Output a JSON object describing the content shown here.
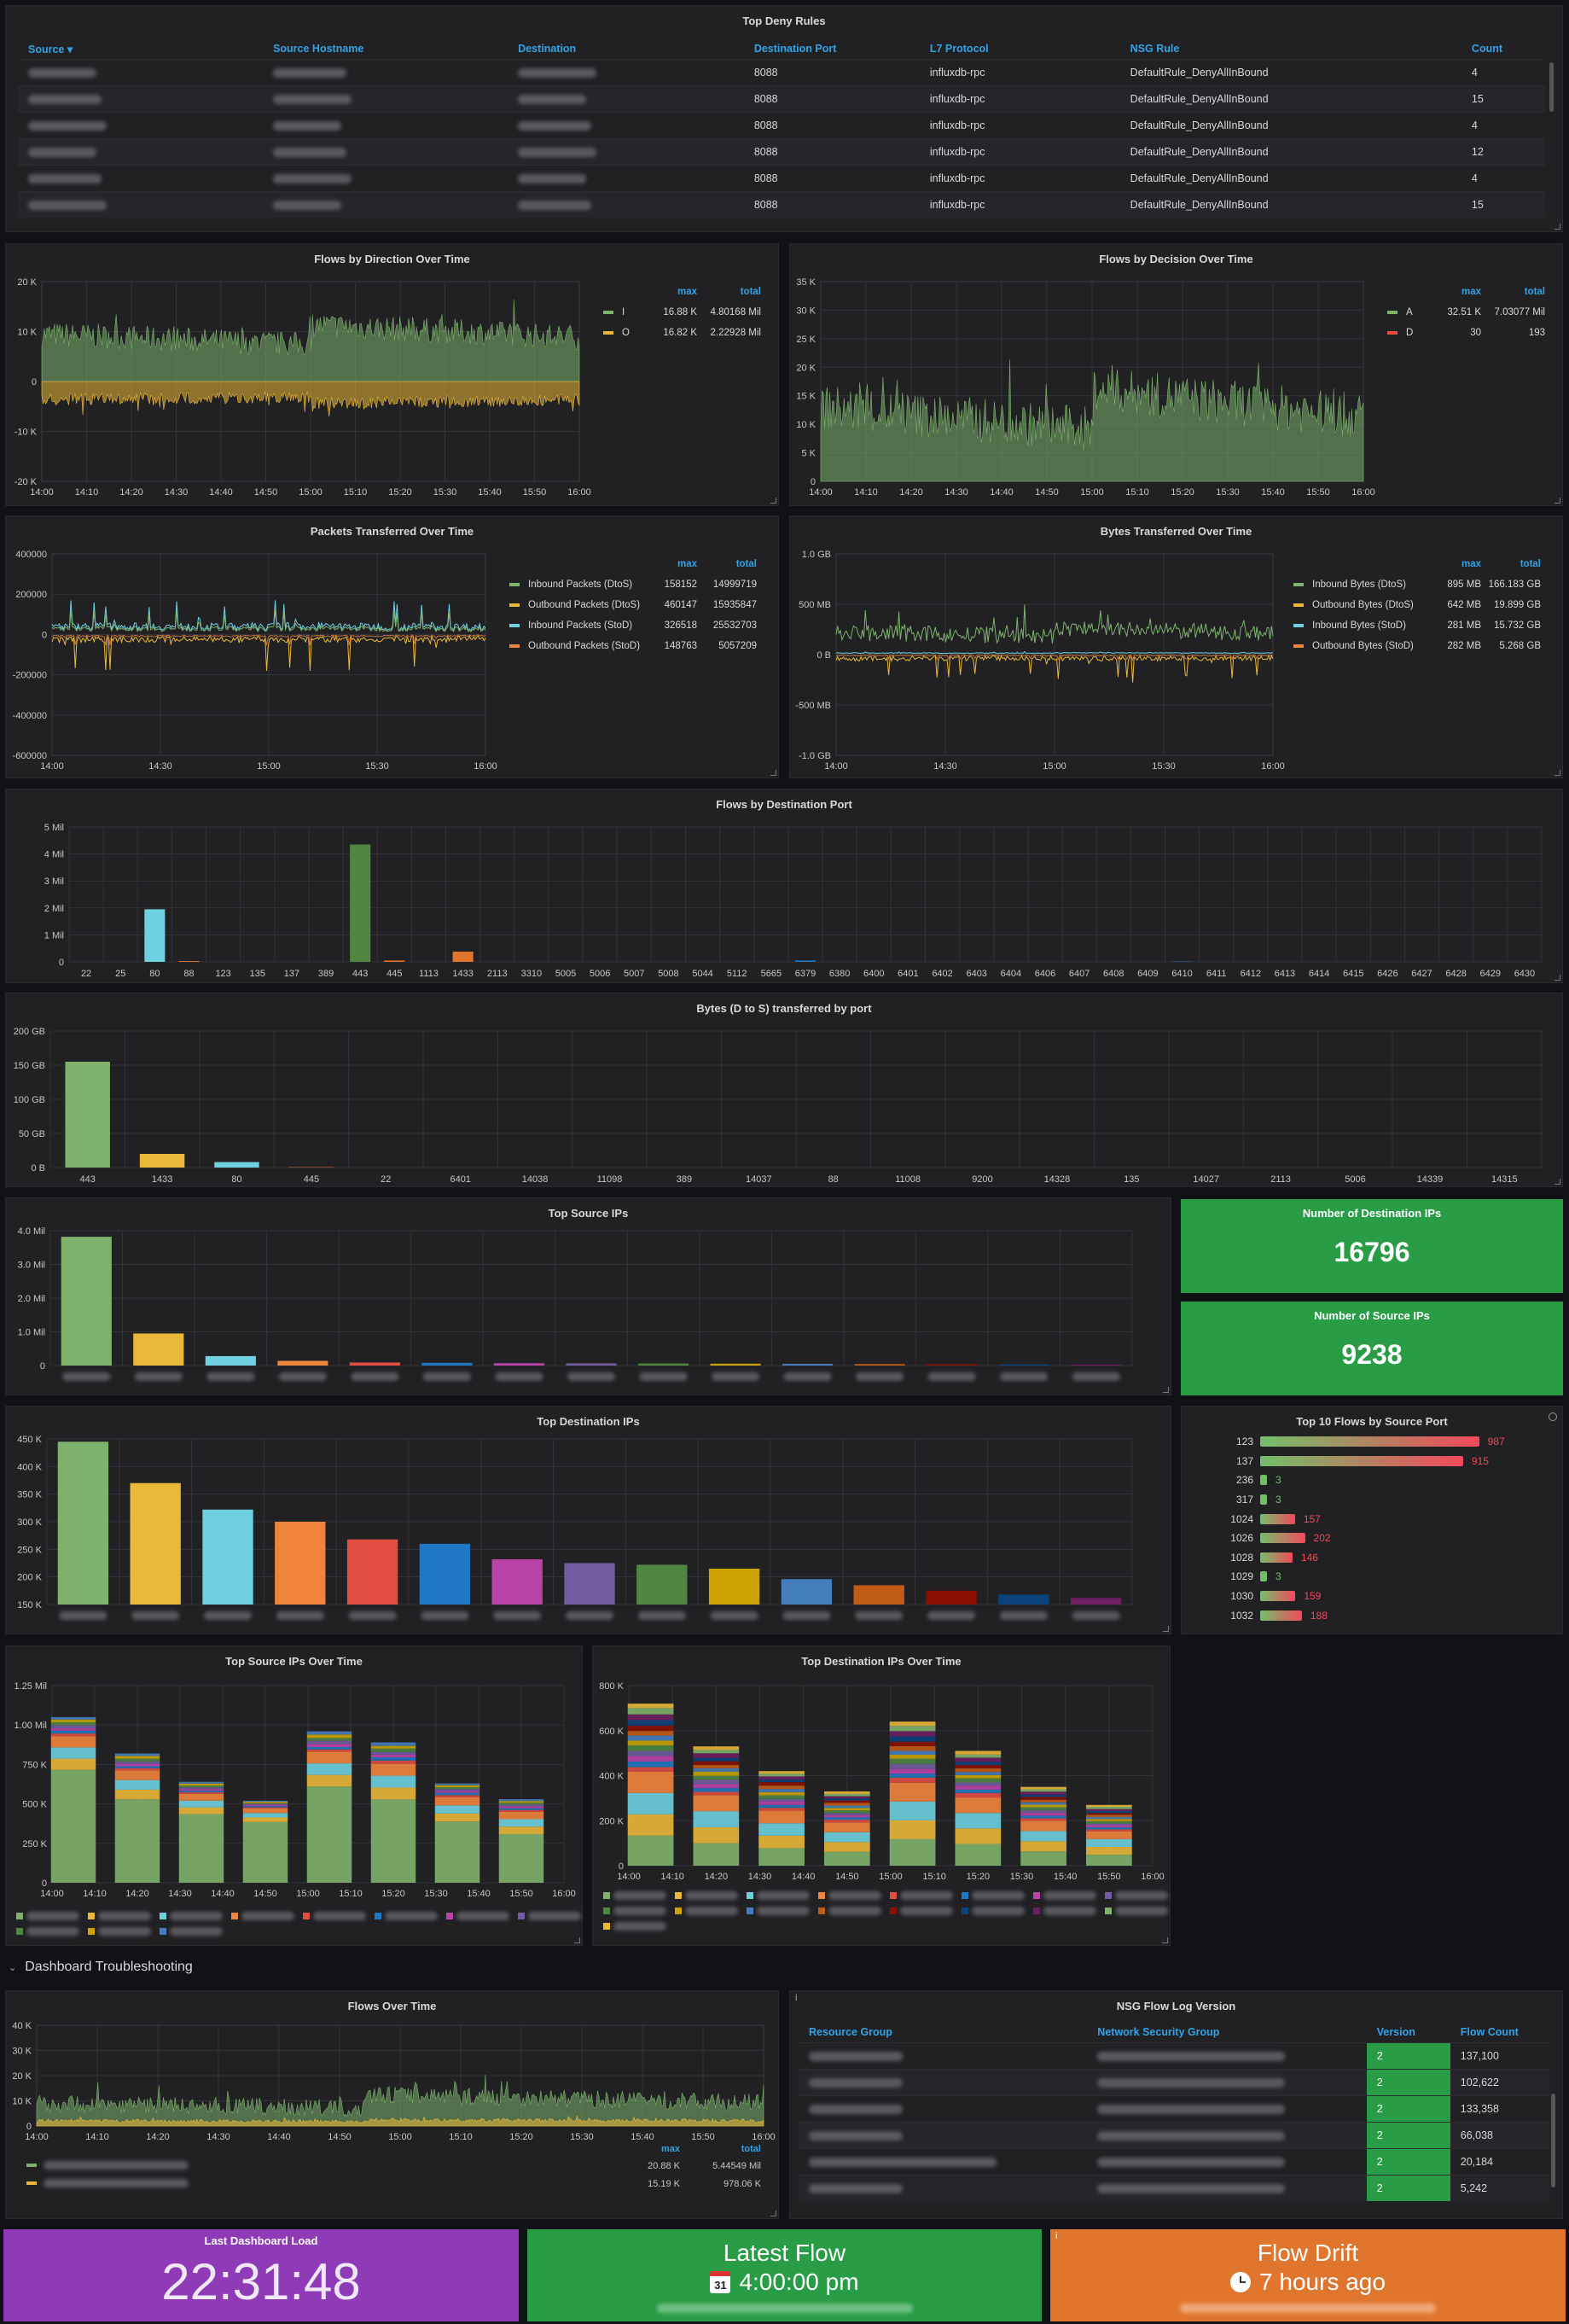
{
  "colors": {
    "green": "#7eb26d",
    "yellow": "#eab839",
    "cyan": "#6ed0e0",
    "orange": "#ef843c",
    "red": "#e24d42",
    "blue": "#1f78c1",
    "purple": "#ba43a9",
    "stat_green": "#299c46",
    "stat_purple": "#8f3bb8",
    "stat_orange": "#e0752d"
  },
  "deny": {
    "title": "Top Deny Rules",
    "columns": [
      "Source",
      "Source Hostname",
      "Destination",
      "Destination Port",
      "L7 Protocol",
      "NSG Rule",
      "Count"
    ],
    "sort_icon": "caret-down-icon",
    "rows": [
      {
        "port": "8088",
        "proto": "influxdb-rpc",
        "rule": "DefaultRule_DenyAllInBound",
        "count": "4"
      },
      {
        "port": "8088",
        "proto": "influxdb-rpc",
        "rule": "DefaultRule_DenyAllInBound",
        "count": "15"
      },
      {
        "port": "8088",
        "proto": "influxdb-rpc",
        "rule": "DefaultRule_DenyAllInBound",
        "count": "4"
      },
      {
        "port": "8088",
        "proto": "influxdb-rpc",
        "rule": "DefaultRule_DenyAllInBound",
        "count": "12"
      },
      {
        "port": "8088",
        "proto": "influxdb-rpc",
        "rule": "DefaultRule_DenyAllInBound",
        "count": "4"
      },
      {
        "port": "8088",
        "proto": "influxdb-rpc",
        "rule": "DefaultRule_DenyAllInBound",
        "count": "15"
      }
    ]
  },
  "direction": {
    "title": "Flows by Direction Over Time",
    "yticks": [
      "20 K",
      "10 K",
      "0",
      "-10 K",
      "-20 K"
    ],
    "xticks": [
      "14:00",
      "14:10",
      "14:20",
      "14:30",
      "14:40",
      "14:50",
      "15:00",
      "15:10",
      "15:20",
      "15:30",
      "15:40",
      "15:50",
      "16:00"
    ],
    "legend_head": {
      "max": "max",
      "total": "total"
    },
    "legend": [
      {
        "name": "I",
        "max": "16.88 K",
        "total": "4.80168 Mil",
        "color": "#7eb26d"
      },
      {
        "name": "O",
        "max": "16.82 K",
        "total": "2.22928 Mil",
        "color": "#eab839"
      }
    ]
  },
  "decision": {
    "title": "Flows by Decision Over Time",
    "yticks": [
      "35 K",
      "30 K",
      "25 K",
      "20 K",
      "15 K",
      "10 K",
      "5 K",
      "0"
    ],
    "xticks": [
      "14:00",
      "14:10",
      "14:20",
      "14:30",
      "14:40",
      "14:50",
      "15:00",
      "15:10",
      "15:20",
      "15:30",
      "15:40",
      "15:50",
      "16:00"
    ],
    "legend_head": {
      "max": "max",
      "total": "total"
    },
    "legend": [
      {
        "name": "A",
        "max": "32.51 K",
        "total": "7.03077 Mil",
        "color": "#7eb26d"
      },
      {
        "name": "D",
        "max": "30",
        "total": "193",
        "color": "#e24d42"
      }
    ]
  },
  "packets": {
    "title": "Packets Transferred Over Time",
    "yticks": [
      "400000",
      "200000",
      "0",
      "-200000",
      "-400000",
      "-600000"
    ],
    "xticks": [
      "14:00",
      "14:30",
      "15:00",
      "15:30",
      "16:00"
    ],
    "legend_head": {
      "max": "max",
      "total": "total"
    },
    "legend": [
      {
        "name": "Inbound Packets (DtoS)",
        "max": "158152",
        "total": "14999719",
        "color": "#7eb26d"
      },
      {
        "name": "Outbound Packets (DtoS)",
        "max": "460147",
        "total": "15935847",
        "color": "#eab839"
      },
      {
        "name": "Inbound Packets (StoD)",
        "max": "326518",
        "total": "25532703",
        "color": "#6ed0e0"
      },
      {
        "name": "Outbound Packets (StoD)",
        "max": "148763",
        "total": "5057209",
        "color": "#ef843c"
      }
    ]
  },
  "bytes": {
    "title": "Bytes Transferred Over Time",
    "yticks": [
      "1.0 GB",
      "500 MB",
      "0 B",
      "-500 MB",
      "-1.0 GB"
    ],
    "xticks": [
      "14:00",
      "14:30",
      "15:00",
      "15:30",
      "16:00"
    ],
    "legend_head": {
      "max": "max",
      "total": "total"
    },
    "legend": [
      {
        "name": "Inbound Bytes (DtoS)",
        "max": "895 MB",
        "total": "166.183 GB",
        "color": "#7eb26d"
      },
      {
        "name": "Outbound Bytes (DtoS)",
        "max": "642 MB",
        "total": "19.899 GB",
        "color": "#eab839"
      },
      {
        "name": "Inbound Bytes (StoD)",
        "max": "281 MB",
        "total": "15.732 GB",
        "color": "#6ed0e0"
      },
      {
        "name": "Outbound Bytes (StoD)",
        "max": "282 MB",
        "total": "5.268 GB",
        "color": "#ef843c"
      }
    ]
  },
  "chart_data": [
    {
      "type": "bar",
      "title": "Flows by Destination Port",
      "ylabel": "",
      "ylim": [
        0,
        5000000
      ],
      "yticks": [
        "5 Mil",
        "4 Mil",
        "3 Mil",
        "2 Mil",
        "1 Mil",
        "0"
      ],
      "categories": [
        "22",
        "25",
        "80",
        "88",
        "123",
        "135",
        "137",
        "389",
        "443",
        "445",
        "1113",
        "1433",
        "2113",
        "3310",
        "5005",
        "5006",
        "5007",
        "5008",
        "5044",
        "5112",
        "5665",
        "6379",
        "6380",
        "6400",
        "6401",
        "6402",
        "6403",
        "6404",
        "6406",
        "6407",
        "6408",
        "6409",
        "6410",
        "6411",
        "6412",
        "6413",
        "6414",
        "6415",
        "6426",
        "6427",
        "6428",
        "6429",
        "6430"
      ],
      "values": [
        2000,
        1500,
        1950000,
        30000,
        3000,
        2000,
        2000,
        4000,
        4350000,
        50000,
        3000,
        380000,
        3000,
        2000,
        2000,
        1000,
        1000,
        1000,
        1000,
        1000,
        1000,
        50000,
        2000,
        1000,
        1000,
        1000,
        1000,
        1000,
        1000,
        1000,
        1000,
        1000,
        15000,
        1000,
        1000,
        1000,
        1000,
        1000,
        1000,
        1000,
        1000,
        1000,
        1000
      ]
    },
    {
      "type": "bar",
      "title": "Bytes (D to S) transferred by port",
      "ylabel": "",
      "ylim": [
        0,
        200
      ],
      "yticks": [
        "200 GB",
        "150 GB",
        "100 GB",
        "50 GB",
        "0 B"
      ],
      "categories": [
        "443",
        "1433",
        "80",
        "445",
        "22",
        "6401",
        "14038",
        "11098",
        "389",
        "14037",
        "88",
        "11008",
        "9200",
        "14328",
        "135",
        "14027",
        "2113",
        "5006",
        "14339",
        "14315"
      ],
      "values": [
        155,
        20,
        8,
        0.5,
        0,
        0,
        0,
        0,
        0,
        0,
        0,
        0,
        0,
        0,
        0,
        0,
        0,
        0,
        0,
        0
      ]
    },
    {
      "type": "bar",
      "title": "Top Source IPs",
      "ylabel": "",
      "ylim": [
        0,
        4000000
      ],
      "yticks": [
        "4.0 Mil",
        "3.0 Mil",
        "2.0 Mil",
        "1.0 Mil",
        "0"
      ],
      "values": [
        3820000,
        950000,
        280000,
        140000,
        90000,
        80000,
        70000,
        65000,
        60000,
        55000,
        50000,
        45000,
        40000,
        35000,
        30000
      ]
    },
    {
      "type": "bar",
      "title": "Top Destination IPs",
      "ylabel": "",
      "ylim": [
        150000,
        450000
      ],
      "yticks": [
        "450 K",
        "400 K",
        "350 K",
        "300 K",
        "250 K",
        "200 K",
        "150 K"
      ],
      "values": [
        445000,
        370000,
        322000,
        300000,
        268000,
        260000,
        232000,
        225000,
        222000,
        215000,
        196000,
        185000,
        175000,
        168000,
        162000
      ]
    },
    {
      "type": "bar",
      "title": "Top Source IPs Over Time",
      "ylabel": "",
      "ylim": [
        0,
        1250000
      ],
      "yticks": [
        "1.25 Mil",
        "1.00 Mil",
        "750 K",
        "500 K",
        "250 K",
        "0"
      ],
      "categories": [
        "14:00",
        "14:10",
        "14:20",
        "14:30",
        "14:40",
        "14:50",
        "15:00",
        "15:10",
        "15:20",
        "15:30",
        "15:40",
        "15:50",
        "16:00"
      ],
      "totals": [
        1050000,
        820000,
        640000,
        520000,
        960000,
        890000,
        630000,
        530000
      ],
      "base": [
        700000,
        520000,
        430000,
        380000,
        600000,
        520000,
        380000,
        300000
      ]
    },
    {
      "type": "bar",
      "title": "Top Destination IPs Over Time",
      "ylabel": "",
      "ylim": [
        0,
        800000
      ],
      "yticks": [
        "800 K",
        "600 K",
        "400 K",
        "200 K",
        "0"
      ],
      "categories": [
        "14:00",
        "14:10",
        "14:20",
        "14:30",
        "14:40",
        "14:50",
        "15:00",
        "15:10",
        "15:20",
        "15:30",
        "15:40",
        "15:50",
        "16:00"
      ],
      "totals": [
        720000,
        530000,
        420000,
        330000,
        640000,
        510000,
        350000,
        270000
      ]
    }
  ],
  "dest_count": {
    "title": "Number of Destination IPs",
    "value": "16796"
  },
  "src_count": {
    "title": "Number of Source IPs",
    "value": "9238"
  },
  "src_port": {
    "title": "Top 10 Flows by Source Port",
    "rows": [
      {
        "port": "123",
        "value": "987",
        "v": 987
      },
      {
        "port": "137",
        "value": "915",
        "v": 915
      },
      {
        "port": "236",
        "value": "3",
        "v": 3
      },
      {
        "port": "317",
        "value": "3",
        "v": 3
      },
      {
        "port": "1024",
        "value": "157",
        "v": 157
      },
      {
        "port": "1026",
        "value": "202",
        "v": 202
      },
      {
        "port": "1028",
        "value": "146",
        "v": 146
      },
      {
        "port": "1029",
        "value": "3",
        "v": 3
      },
      {
        "port": "1030",
        "value": "159",
        "v": 159
      },
      {
        "port": "1032",
        "value": "188",
        "v": 188
      }
    ]
  },
  "section": {
    "title": "Dashboard Troubleshooting"
  },
  "flows_time": {
    "title": "Flows Over Time",
    "yticks": [
      "40 K",
      "30 K",
      "20 K",
      "10 K",
      "0"
    ],
    "xticks": [
      "14:00",
      "14:10",
      "14:20",
      "14:30",
      "14:40",
      "14:50",
      "15:00",
      "15:10",
      "15:20",
      "15:30",
      "15:40",
      "15:50",
      "16:00"
    ],
    "legend_head": {
      "max": "max",
      "total": "total"
    },
    "legend": [
      {
        "max": "20.88 K",
        "total": "5.44549 Mil",
        "color": "#7eb26d"
      },
      {
        "max": "15.19 K",
        "total": "978.06 K",
        "color": "#eab839"
      }
    ]
  },
  "nsg": {
    "title": "NSG Flow Log Version",
    "columns": [
      "Resource Group",
      "Network Security Group",
      "Version",
      "Flow Count"
    ],
    "rows": [
      {
        "version": "2",
        "count": "137,100"
      },
      {
        "version": "2",
        "count": "102,622"
      },
      {
        "version": "2",
        "count": "133,358"
      },
      {
        "version": "2",
        "count": "66,038"
      },
      {
        "version": "2",
        "count": "20,184"
      },
      {
        "version": "2",
        "count": "5,242"
      }
    ]
  },
  "last_load": {
    "title": "Last Dashboard Load",
    "value": "22:31:48"
  },
  "latest_flow": {
    "title": "Latest Flow",
    "value": "4:00:00 pm",
    "icon": "calendar-icon",
    "calendar_day": "31"
  },
  "flow_drift": {
    "title": "Flow Drift",
    "value": "7 hours ago",
    "icon": "clock-icon"
  },
  "info_icon": "i"
}
